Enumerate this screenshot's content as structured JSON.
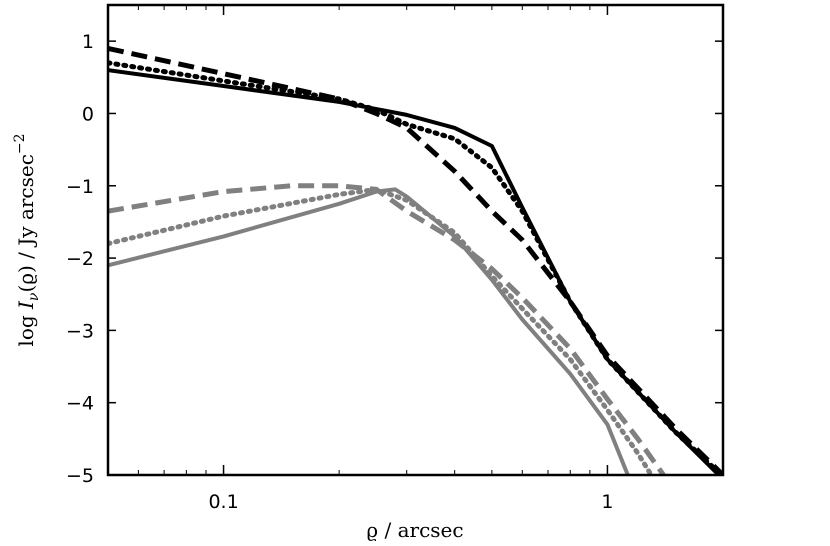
{
  "chart_data": {
    "type": "line",
    "xscale": "log",
    "xlim": [
      0.05,
      2.0
    ],
    "ylim": [
      -5,
      1.5
    ],
    "xticks": [
      {
        "value": 0.1,
        "label": "0.1"
      },
      {
        "value": 1,
        "label": "1"
      }
    ],
    "yticks": [
      {
        "value": 1,
        "label": "1"
      },
      {
        "value": 0,
        "label": "0"
      },
      {
        "value": -1,
        "label": "−1"
      },
      {
        "value": -2,
        "label": "−2"
      },
      {
        "value": -3,
        "label": "−3"
      },
      {
        "value": -4,
        "label": "−4"
      },
      {
        "value": -5,
        "label": "−5"
      }
    ],
    "xlabel": "ϱ / arcsec",
    "ylabel": {
      "prefix": "log ",
      "symbol": "I",
      "subscript": "ν",
      "arg": "(ϱ) / Jy arcsec",
      "superscript": "−2"
    },
    "grid": false,
    "series": [
      {
        "color": "#000000",
        "dash": "solid",
        "points": [
          [
            0.05,
            0.6
          ],
          [
            0.1,
            0.38
          ],
          [
            0.2,
            0.16
          ],
          [
            0.3,
            -0.02
          ],
          [
            0.4,
            -0.2
          ],
          [
            0.5,
            -0.45
          ],
          [
            0.6,
            -1.3
          ],
          [
            0.8,
            -2.6
          ],
          [
            1.0,
            -3.4
          ],
          [
            1.5,
            -4.4
          ],
          [
            1.95,
            -5.0
          ]
        ]
      },
      {
        "color": "#000000",
        "dash": "dotted",
        "points": [
          [
            0.05,
            0.7
          ],
          [
            0.1,
            0.45
          ],
          [
            0.2,
            0.2
          ],
          [
            0.25,
            0.05
          ],
          [
            0.3,
            -0.15
          ],
          [
            0.4,
            -0.35
          ],
          [
            0.5,
            -0.75
          ],
          [
            0.6,
            -1.35
          ],
          [
            0.8,
            -2.6
          ],
          [
            1.0,
            -3.4
          ],
          [
            1.5,
            -4.4
          ],
          [
            1.98,
            -5.0
          ]
        ]
      },
      {
        "color": "#000000",
        "dash": "dashed",
        "points": [
          [
            0.05,
            0.9
          ],
          [
            0.1,
            0.55
          ],
          [
            0.2,
            0.2
          ],
          [
            0.25,
            0.0
          ],
          [
            0.3,
            -0.2
          ],
          [
            0.4,
            -0.8
          ],
          [
            0.5,
            -1.35
          ],
          [
            0.6,
            -1.75
          ],
          [
            0.8,
            -2.6
          ],
          [
            1.0,
            -3.35
          ],
          [
            1.5,
            -4.35
          ],
          [
            2.0,
            -5.0
          ]
        ]
      },
      {
        "color": "#808080",
        "dash": "solid",
        "points": [
          [
            0.05,
            -2.1
          ],
          [
            0.1,
            -1.7
          ],
          [
            0.2,
            -1.25
          ],
          [
            0.25,
            -1.08
          ],
          [
            0.28,
            -1.05
          ],
          [
            0.3,
            -1.15
          ],
          [
            0.4,
            -1.7
          ],
          [
            0.5,
            -2.3
          ],
          [
            0.6,
            -2.85
          ],
          [
            0.8,
            -3.6
          ],
          [
            1.0,
            -4.3
          ],
          [
            1.13,
            -5.0
          ]
        ]
      },
      {
        "color": "#808080",
        "dash": "dotted",
        "points": [
          [
            0.05,
            -1.8
          ],
          [
            0.1,
            -1.42
          ],
          [
            0.2,
            -1.12
          ],
          [
            0.25,
            -1.05
          ],
          [
            0.3,
            -1.2
          ],
          [
            0.4,
            -1.65
          ],
          [
            0.5,
            -2.25
          ],
          [
            0.6,
            -2.7
          ],
          [
            0.8,
            -3.4
          ],
          [
            1.0,
            -4.1
          ],
          [
            1.2,
            -4.7
          ],
          [
            1.3,
            -5.0
          ]
        ]
      },
      {
        "color": "#808080",
        "dash": "dashed",
        "points": [
          [
            0.05,
            -1.35
          ],
          [
            0.1,
            -1.08
          ],
          [
            0.15,
            -1.0
          ],
          [
            0.2,
            -1.0
          ],
          [
            0.25,
            -1.05
          ],
          [
            0.3,
            -1.35
          ],
          [
            0.4,
            -1.75
          ],
          [
            0.5,
            -2.15
          ],
          [
            0.6,
            -2.55
          ],
          [
            0.8,
            -3.25
          ],
          [
            1.0,
            -3.95
          ],
          [
            1.2,
            -4.5
          ],
          [
            1.4,
            -5.0
          ]
        ]
      }
    ]
  }
}
